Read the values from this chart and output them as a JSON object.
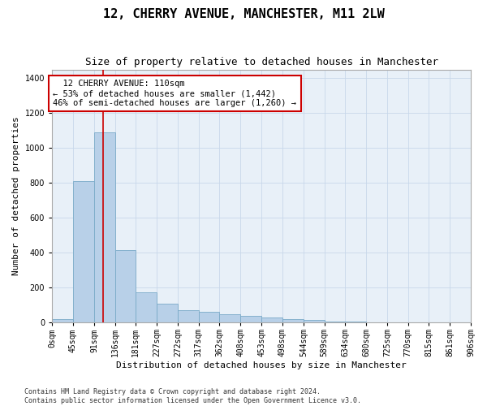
{
  "title1": "12, CHERRY AVENUE, MANCHESTER, M11 2LW",
  "title2": "Size of property relative to detached houses in Manchester",
  "xlabel": "Distribution of detached houses by size in Manchester",
  "ylabel": "Number of detached properties",
  "bar_color": "#b8d0e8",
  "bar_edge_color": "#7aaac8",
  "grid_color": "#c8d8ea",
  "background_color": "#e8f0f8",
  "annotation_box_color": "#cc0000",
  "annotation_text": "  12 CHERRY AVENUE: 110sqm\n← 53% of detached houses are smaller (1,442)\n46% of semi-detached houses are larger (1,260) →",
  "property_size": 110,
  "red_line_color": "#cc0000",
  "bin_edges": [
    0,
    45,
    91,
    136,
    181,
    227,
    272,
    317,
    362,
    408,
    453,
    498,
    544,
    589,
    634,
    680,
    725,
    770,
    815,
    861,
    906
  ],
  "bar_heights": [
    18,
    810,
    1090,
    415,
    175,
    110,
    70,
    60,
    50,
    38,
    28,
    18,
    13,
    7,
    4,
    3,
    2,
    1,
    1,
    1
  ],
  "ylim": [
    0,
    1450
  ],
  "yticks": [
    0,
    200,
    400,
    600,
    800,
    1000,
    1200,
    1400
  ],
  "footer_text": "Contains HM Land Registry data © Crown copyright and database right 2024.\nContains public sector information licensed under the Open Government Licence v3.0.",
  "title1_fontsize": 11,
  "title2_fontsize": 9,
  "xlabel_fontsize": 8,
  "ylabel_fontsize": 8,
  "tick_fontsize": 7,
  "annotation_fontsize": 7.5,
  "footer_fontsize": 6
}
